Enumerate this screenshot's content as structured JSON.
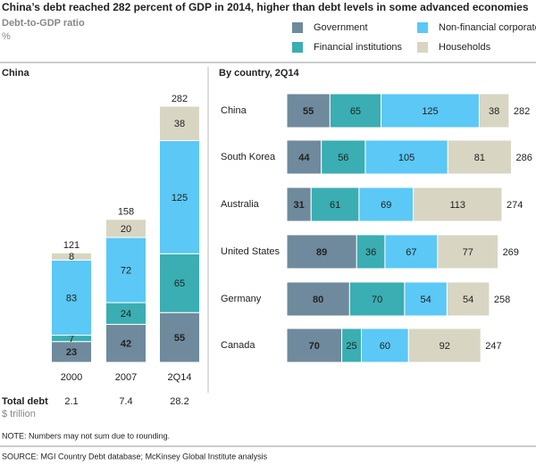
{
  "title": "China’s debt reached 282 percent of GDP in 2014, higher than debt levels in some advanced economies",
  "subtitle": "Debt-to-GDP ratio",
  "unit": "%",
  "chart_data": [
    {
      "type": "stacked-bar",
      "title": "China",
      "categories": [
        "2000",
        "2007",
        "2Q14"
      ],
      "series": [
        {
          "name": "Government",
          "color": "#6f8a9c",
          "values": [
            23,
            42,
            55
          ]
        },
        {
          "name": "Financial institutions",
          "color": "#3aaeb2",
          "values": [
            7,
            24,
            65
          ]
        },
        {
          "name": "Non-financial corporate",
          "color": "#5bc8f5",
          "values": [
            83,
            72,
            125
          ]
        },
        {
          "name": "Households",
          "color": "#d8d5c3",
          "values": [
            8,
            20,
            38
          ]
        }
      ],
      "totals": [
        121,
        158,
        282
      ]
    },
    {
      "type": "stacked-barh",
      "title": "By country, 2Q14",
      "categories": [
        "China",
        "South Korea",
        "Australia",
        "United States",
        "Germany",
        "Canada"
      ],
      "series": [
        {
          "values": [
            55,
            44,
            31,
            89,
            80,
            70
          ]
        },
        {
          "values": [
            65,
            56,
            61,
            36,
            70,
            25
          ]
        },
        {
          "values": [
            125,
            105,
            69,
            67,
            54,
            60
          ]
        },
        {
          "values": [
            38,
            81,
            113,
            77,
            54,
            92
          ]
        }
      ],
      "totals": [
        282,
        286,
        274,
        269,
        258,
        247
      ]
    }
  ],
  "total_debt": {
    "label": "Total debt",
    "unit": "$ trillion",
    "values": [
      2.1,
      7.4,
      28.2
    ]
  },
  "note": "NOTE: Numbers may not sum due to rounding.",
  "source": "SOURCE: MGI Country Debt database; McKinsey Global Institute analysis"
}
